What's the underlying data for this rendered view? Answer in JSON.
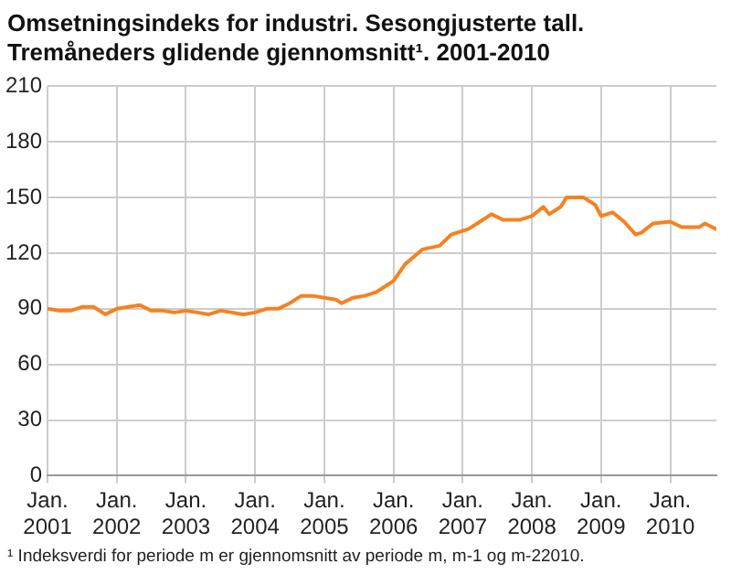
{
  "chart_data": {
    "type": "line",
    "title": "Omsetningsindeks for industri. Sesongjusterte tall. Tremåneders glidende gjennomsnitt¹. 2001-2010",
    "annotations": [
      "¹ Indeksverdi for periode m er gjennomsnitt av periode m, m-1 og m-22010."
    ],
    "x": [
      "2001-01",
      "2001-03",
      "2001-05",
      "2001-07",
      "2001-09",
      "2001-11",
      "2002-01",
      "2002-03",
      "2002-05",
      "2002-07",
      "2002-09",
      "2002-11",
      "2003-01",
      "2003-03",
      "2003-05",
      "2003-07",
      "2003-09",
      "2003-11",
      "2004-01",
      "2004-03",
      "2004-05",
      "2004-07",
      "2004-09",
      "2004-11",
      "2005-01",
      "2005-03",
      "2005-04",
      "2005-06",
      "2005-08",
      "2005-10",
      "2005-12",
      "2006-01",
      "2006-03",
      "2006-06",
      "2006-09",
      "2006-11",
      "2007-02",
      "2007-04",
      "2007-06",
      "2007-08",
      "2007-11",
      "2008-01",
      "2008-03",
      "2008-04",
      "2008-06",
      "2008-07",
      "2008-10",
      "2008-12",
      "2009-01",
      "2009-03",
      "2009-05",
      "2009-07",
      "2009-08",
      "2009-10",
      "2010-01",
      "2010-03",
      "2010-06",
      "2010-07",
      "2010-09"
    ],
    "series": [
      {
        "color": "#f58220",
        "values": [
          90,
          89,
          89,
          91,
          91,
          87,
          90,
          91,
          92,
          89,
          89,
          88,
          89,
          88,
          87,
          89,
          88,
          87,
          88,
          90,
          90,
          93,
          97,
          97,
          96,
          95,
          93,
          96,
          97,
          99,
          103,
          105,
          114,
          122,
          124,
          130,
          133,
          137,
          141,
          138,
          138,
          140,
          145,
          141,
          145,
          150,
          150,
          146,
          140,
          142,
          137,
          130,
          131,
          136,
          137,
          134,
          134,
          136,
          133
        ]
      }
    ],
    "xlim": [
      "2001-01",
      "2010-09"
    ],
    "xticks": [
      {
        "value": "2001-01",
        "label": "Jan. 2001"
      },
      {
        "value": "2002-01",
        "label": "Jan. 2002"
      },
      {
        "value": "2003-01",
        "label": "Jan. 2003"
      },
      {
        "value": "2004-01",
        "label": "Jan. 2004"
      },
      {
        "value": "2005-01",
        "label": "Jan. 2005"
      },
      {
        "value": "2006-01",
        "label": "Jan. 2006"
      },
      {
        "value": "2007-01",
        "label": "Jan. 2007"
      },
      {
        "value": "2008-01",
        "label": "Jan. 2008"
      },
      {
        "value": "2009-01",
        "label": "Jan. 2009"
      },
      {
        "value": "2010-01",
        "label": "Jan. 2010"
      }
    ],
    "ylim": [
      0,
      210
    ],
    "yticks": [
      0,
      30,
      60,
      90,
      120,
      150,
      180,
      210
    ],
    "grid": true,
    "legend": false,
    "marker": "none",
    "line_style": "solid"
  }
}
